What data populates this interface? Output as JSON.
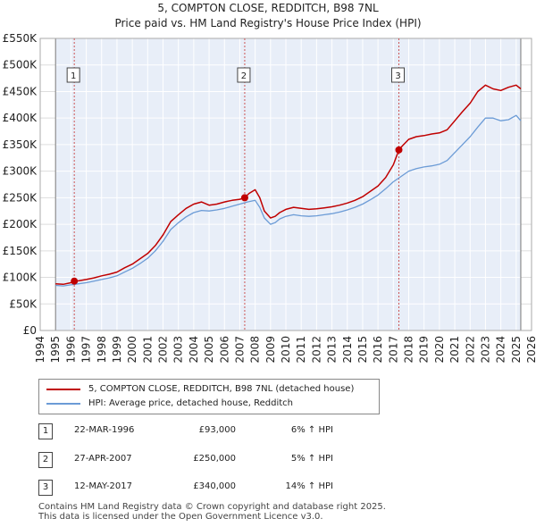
{
  "title_line1": "5, COMPTON CLOSE, REDDITCH, B98 7NL",
  "title_line2": "Price paid vs. HM Land Registry's House Price Index (HPI)",
  "legend": {
    "property_label": "5, COMPTON CLOSE, REDDITCH, B98 7NL (detached house)",
    "hpi_label": "HPI: Average price, detached house, Redditch",
    "property_color": "#c00000",
    "hpi_color": "#6b9bd6"
  },
  "transactions": [
    {
      "num": "1",
      "date": "22-MAR-1996",
      "price": "£93,000",
      "hpi": "6% ↑ HPI"
    },
    {
      "num": "2",
      "date": "27-APR-2007",
      "price": "£250,000",
      "hpi": "5% ↑ HPI"
    },
    {
      "num": "3",
      "date": "12-MAY-2017",
      "price": "£340,000",
      "hpi": "14% ↑ HPI"
    }
  ],
  "footer_line1": "Contains HM Land Registry data © Crown copyright and database right 2025.",
  "footer_line2": "This data is licensed under the Open Government Licence v3.0.",
  "chart_data": {
    "type": "line",
    "title": "5, COMPTON CLOSE, REDDITCH, B98 7NL",
    "subtitle": "Price paid vs. HM Land Registry's House Price Index (HPI)",
    "xlim": [
      1994,
      2026
    ],
    "ylim": [
      0,
      550000
    ],
    "x_ticks": [
      1994,
      1995,
      1996,
      1997,
      1998,
      1999,
      2000,
      2001,
      2002,
      2003,
      2004,
      2005,
      2006,
      2007,
      2008,
      2009,
      2010,
      2011,
      2012,
      2013,
      2014,
      2015,
      2016,
      2017,
      2018,
      2019,
      2020,
      2021,
      2022,
      2023,
      2024,
      2025,
      2026
    ],
    "y_ticks": [
      {
        "value": 0,
        "label": "£0"
      },
      {
        "value": 50000,
        "label": "£50K"
      },
      {
        "value": 100000,
        "label": "£100K"
      },
      {
        "value": 150000,
        "label": "£150K"
      },
      {
        "value": 200000,
        "label": "£200K"
      },
      {
        "value": 250000,
        "label": "£250K"
      },
      {
        "value": 300000,
        "label": "£300K"
      },
      {
        "value": 350000,
        "label": "£350K"
      },
      {
        "value": 400000,
        "label": "£400K"
      },
      {
        "value": 450000,
        "label": "£450K"
      },
      {
        "value": 500000,
        "label": "£500K"
      },
      {
        "value": 550000,
        "label": "£550K"
      }
    ],
    "grid": true,
    "data_start_x": 1995.0,
    "data_end_x": 2025.3,
    "series": [
      {
        "name": "5, COMPTON CLOSE, REDDITCH, B98 7NL (detached house)",
        "color": "#c00000",
        "x": [
          1995.0,
          1995.5,
          1996.0,
          1996.22,
          1996.5,
          1997.0,
          1997.5,
          1998.0,
          1998.5,
          1999.0,
          1999.5,
          2000.0,
          2000.5,
          2001.0,
          2001.5,
          2002.0,
          2002.5,
          2003.0,
          2003.5,
          2004.0,
          2004.5,
          2005.0,
          2005.5,
          2006.0,
          2006.5,
          2007.0,
          2007.32,
          2007.6,
          2008.0,
          2008.3,
          2008.6,
          2009.0,
          2009.3,
          2009.6,
          2010.0,
          2010.5,
          2011.0,
          2011.5,
          2012.0,
          2012.5,
          2013.0,
          2013.5,
          2014.0,
          2014.5,
          2015.0,
          2015.5,
          2016.0,
          2016.5,
          2017.0,
          2017.36,
          2017.6,
          2018.0,
          2018.5,
          2019.0,
          2019.5,
          2020.0,
          2020.5,
          2021.0,
          2021.5,
          2022.0,
          2022.5,
          2023.0,
          2023.5,
          2024.0,
          2024.5,
          2025.0,
          2025.3
        ],
        "y": [
          88000,
          87000,
          90000,
          93000,
          93500,
          96000,
          99000,
          103000,
          106000,
          110000,
          118000,
          125000,
          135000,
          145000,
          160000,
          180000,
          205000,
          218000,
          230000,
          238000,
          242000,
          236000,
          238000,
          242000,
          245000,
          247000,
          250000,
          258000,
          265000,
          250000,
          225000,
          212000,
          215000,
          222000,
          228000,
          232000,
          230000,
          228000,
          229000,
          231000,
          233000,
          236000,
          240000,
          245000,
          252000,
          262000,
          272000,
          288000,
          312000,
          340000,
          348000,
          360000,
          365000,
          367000,
          370000,
          372000,
          378000,
          395000,
          412000,
          428000,
          450000,
          462000,
          455000,
          452000,
          458000,
          462000,
          455000
        ]
      },
      {
        "name": "HPI: Average price, detached house, Redditch",
        "color": "#6b9bd6",
        "x": [
          1995.0,
          1995.5,
          1996.0,
          1996.5,
          1997.0,
          1997.5,
          1998.0,
          1998.5,
          1999.0,
          1999.5,
          2000.0,
          2000.5,
          2001.0,
          2001.5,
          2002.0,
          2002.5,
          2003.0,
          2003.5,
          2004.0,
          2004.5,
          2005.0,
          2005.5,
          2006.0,
          2006.5,
          2007.0,
          2007.5,
          2008.0,
          2008.3,
          2008.6,
          2009.0,
          2009.3,
          2009.6,
          2010.0,
          2010.5,
          2011.0,
          2011.5,
          2012.0,
          2012.5,
          2013.0,
          2013.5,
          2014.0,
          2014.5,
          2015.0,
          2015.5,
          2016.0,
          2016.5,
          2017.0,
          2017.5,
          2018.0,
          2018.5,
          2019.0,
          2019.5,
          2020.0,
          2020.5,
          2021.0,
          2021.5,
          2022.0,
          2022.5,
          2023.0,
          2023.5,
          2024.0,
          2024.5,
          2025.0,
          2025.3
        ],
        "y": [
          85000,
          84000,
          86000,
          88000,
          90000,
          93000,
          96000,
          99000,
          103000,
          110000,
          117000,
          126000,
          136000,
          150000,
          168000,
          190000,
          203000,
          214000,
          222000,
          226000,
          225000,
          227000,
          230000,
          234000,
          238000,
          242000,
          245000,
          232000,
          212000,
          200000,
          203000,
          210000,
          215000,
          218000,
          216000,
          215000,
          216000,
          218000,
          220000,
          223000,
          227000,
          232000,
          238000,
          246000,
          255000,
          267000,
          280000,
          290000,
          300000,
          305000,
          308000,
          310000,
          313000,
          320000,
          335000,
          350000,
          365000,
          383000,
          400000,
          400000,
          395000,
          397000,
          405000,
          395000
        ]
      }
    ],
    "markers": [
      {
        "label": "1",
        "x": 1996.22,
        "y": 93000
      },
      {
        "label": "2",
        "x": 2007.32,
        "y": 250000
      },
      {
        "label": "3",
        "x": 2017.36,
        "y": 340000
      }
    ]
  }
}
